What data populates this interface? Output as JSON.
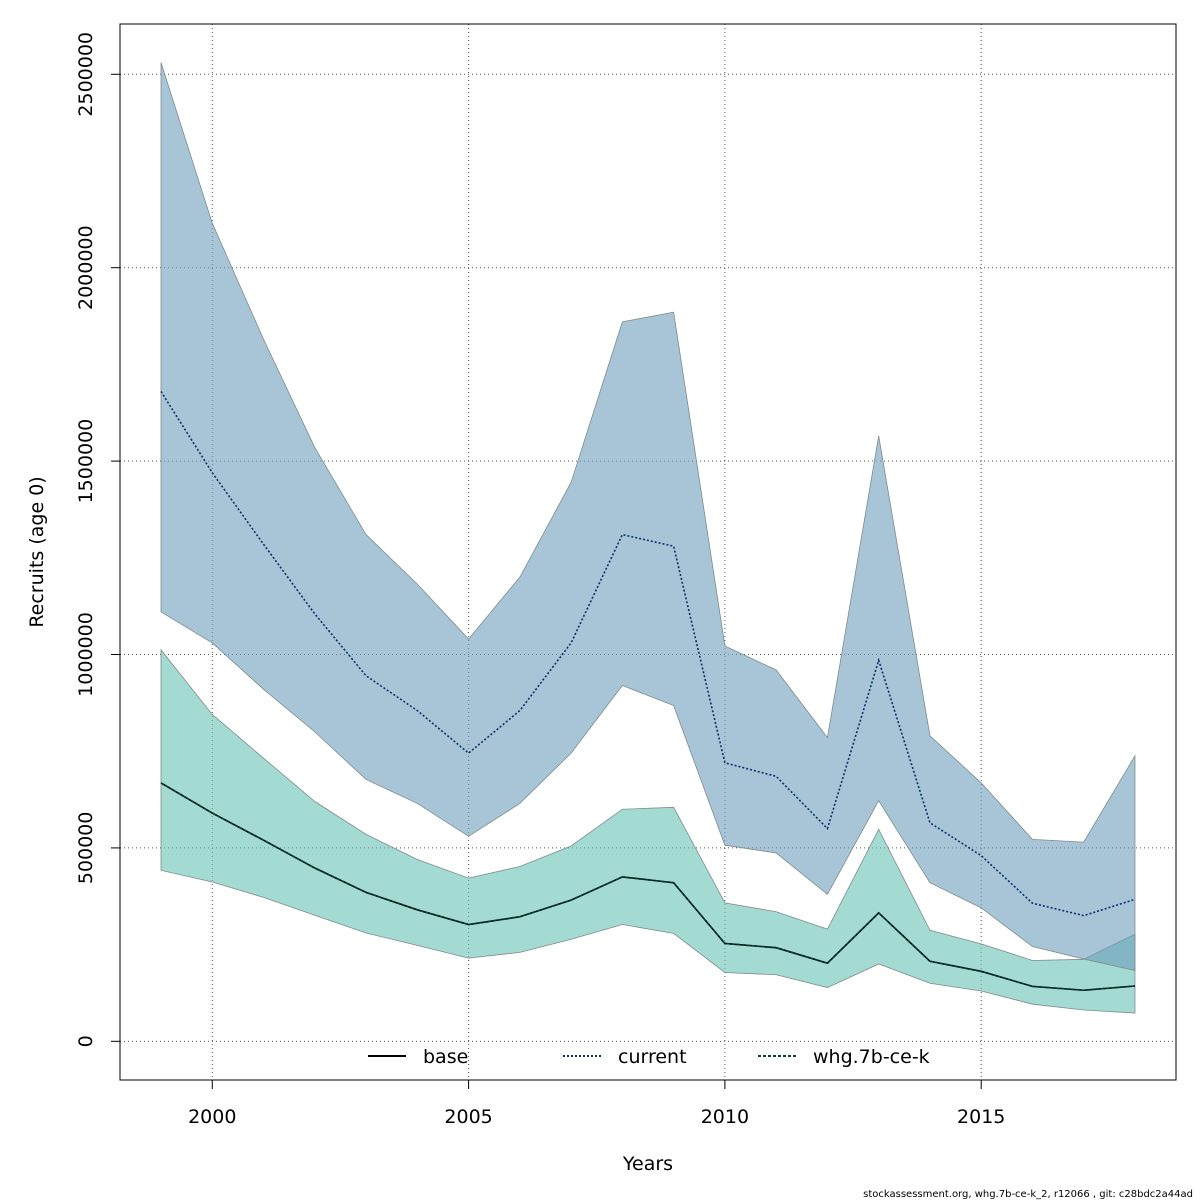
{
  "chart_data": {
    "type": "area",
    "xlabel": "Years",
    "ylabel": "Recruits (age 0)",
    "xlim": [
      1998.2,
      2018.8
    ],
    "ylim": [
      -100000,
      2630000
    ],
    "x_ticks": [
      2000,
      2005,
      2010,
      2015
    ],
    "y_ticks": [
      0,
      500000,
      1000000,
      1500000,
      2000000,
      2500000
    ],
    "grid": true,
    "legend_placement": "bottom",
    "x": [
      1999,
      2000,
      2001,
      2002,
      2003,
      2004,
      2005,
      2006,
      2007,
      2008,
      2009,
      2010,
      2011,
      2012,
      2013,
      2014,
      2015,
      2016,
      2017,
      2018
    ],
    "series": [
      {
        "name": "base",
        "color": "#000000",
        "fill": "#66c2b2",
        "line_style": "solid",
        "values": [
          668000,
          590000,
          520000,
          448000,
          385000,
          340000,
          302000,
          322000,
          365000,
          425000,
          410000,
          253000,
          242000,
          202000,
          332000,
          207000,
          181000,
          142000,
          132000,
          143000
        ],
        "lower": [
          442000,
          412000,
          372000,
          326000,
          280000,
          248000,
          215000,
          230000,
          264000,
          302000,
          279000,
          178000,
          172000,
          139000,
          200000,
          150000,
          130000,
          96000,
          81000,
          73000
        ],
        "upper": [
          1012000,
          845000,
          732000,
          620000,
          535000,
          470000,
          422000,
          452000,
          505000,
          600000,
          605000,
          358000,
          335000,
          290000,
          548000,
          287000,
          252000,
          209000,
          212000,
          277000
        ]
      },
      {
        "name": "current",
        "color": "#08306b",
        "fill": "#6c9fbb",
        "line_style": "dotted",
        "values": [
          1680000,
          1470000,
          1285000,
          1105000,
          945000,
          855000,
          745000,
          855000,
          1030000,
          1310000,
          1280000,
          720000,
          685000,
          550000,
          985000,
          565000,
          480000,
          357000,
          325000,
          367000
        ],
        "lower": [
          1110000,
          1030000,
          910000,
          800000,
          677000,
          615000,
          530000,
          615000,
          745000,
          920000,
          868000,
          507000,
          487000,
          380000,
          622000,
          410000,
          345000,
          245000,
          213000,
          183000
        ],
        "upper": [
          2530000,
          2115000,
          1815000,
          1535000,
          1310000,
          1182000,
          1040000,
          1200000,
          1445000,
          1860000,
          1885000,
          1022000,
          960000,
          785000,
          1565000,
          790000,
          668000,
          522000,
          515000,
          738000
        ]
      },
      {
        "name": "whg.7b-ce-k",
        "color": "#00443b",
        "fill": "#3fa89a",
        "line_style": "dashed",
        "values": [
          668000,
          590000,
          520000,
          448000,
          385000,
          340000,
          302000,
          322000,
          365000,
          425000,
          410000,
          253000,
          242000,
          202000,
          332000,
          207000,
          181000,
          142000,
          132000,
          143000
        ]
      }
    ],
    "footer": "stockassessment.org, whg.7b-ce-k_2, r12066 , git: c28bdc2a44ad"
  }
}
